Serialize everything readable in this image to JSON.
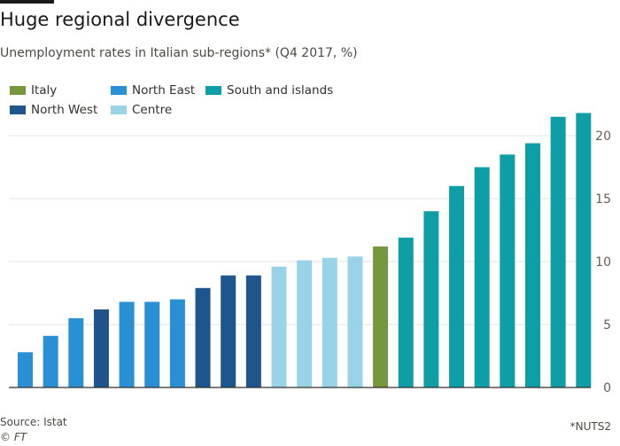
{
  "header": {
    "title": "Huge regional divergence",
    "subtitle": "Unemployment rates in Italian sub-regions* (Q4 2017, %)"
  },
  "footer": {
    "source": "Source: Istat",
    "copyright": "© FT",
    "footnote": "*NUTS2"
  },
  "colors": {
    "Italy": "#76973b",
    "North East": "#2a90d5",
    "South and islands": "#0e9fa6",
    "North West": "#1e558c",
    "Centre": "#98d3e8",
    "gridline": "#e6e3e0",
    "axis": "#33302e"
  },
  "chart_data": {
    "type": "bar",
    "title": "Huge regional divergence",
    "subtitle": "Unemployment rates in Italian sub-regions* (Q4 2017, %)",
    "ylim": [
      0,
      22
    ],
    "yticks": [
      0,
      5,
      10,
      15,
      20
    ],
    "y_axis_side": "right",
    "grid": true,
    "legend": [
      {
        "name": "Italy",
        "group": "Italy"
      },
      {
        "name": "North East",
        "group": "North East"
      },
      {
        "name": "South and islands",
        "group": "South and islands"
      },
      {
        "name": "North West",
        "group": "North West"
      },
      {
        "name": "Centre",
        "group": "Centre"
      }
    ],
    "bars": [
      {
        "value": 2.8,
        "group": "North East"
      },
      {
        "value": 4.1,
        "group": "North East"
      },
      {
        "value": 5.5,
        "group": "North East"
      },
      {
        "value": 6.2,
        "group": "North West"
      },
      {
        "value": 6.8,
        "group": "North East"
      },
      {
        "value": 6.8,
        "group": "North East"
      },
      {
        "value": 7.0,
        "group": "North East"
      },
      {
        "value": 7.9,
        "group": "North West"
      },
      {
        "value": 8.9,
        "group": "North West"
      },
      {
        "value": 8.9,
        "group": "North West"
      },
      {
        "value": 9.6,
        "group": "Centre"
      },
      {
        "value": 10.1,
        "group": "Centre"
      },
      {
        "value": 10.3,
        "group": "Centre"
      },
      {
        "value": 10.4,
        "group": "Centre"
      },
      {
        "value": 11.2,
        "group": "Italy"
      },
      {
        "value": 11.9,
        "group": "South and islands"
      },
      {
        "value": 14.0,
        "group": "South and islands"
      },
      {
        "value": 16.0,
        "group": "South and islands"
      },
      {
        "value": 17.5,
        "group": "South and islands"
      },
      {
        "value": 18.5,
        "group": "South and islands"
      },
      {
        "value": 19.4,
        "group": "South and islands"
      },
      {
        "value": 21.5,
        "group": "South and islands"
      },
      {
        "value": 21.8,
        "group": "South and islands"
      }
    ]
  }
}
